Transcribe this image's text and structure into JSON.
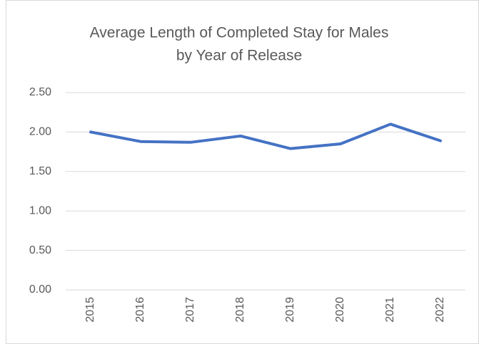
{
  "chart_data": {
    "type": "line",
    "title": [
      "Average Length of Completed Stay for Males",
      "by Year of Release"
    ],
    "categories": [
      "2015",
      "2016",
      "2017",
      "2018",
      "2019",
      "2020",
      "2021",
      "2022"
    ],
    "series": [
      {
        "name": "Average Length of Completed Stay",
        "color": "#4472c4",
        "values": [
          2.0,
          1.88,
          1.87,
          1.95,
          1.79,
          1.85,
          2.1,
          1.89
        ]
      }
    ],
    "ylim": [
      0,
      2.5
    ],
    "yticks": [
      {
        "value": 0,
        "label": "0.00"
      },
      {
        "value": 0.5,
        "label": "0.50"
      },
      {
        "value": 1,
        "label": "1.00"
      },
      {
        "value": 1.5,
        "label": "1.50"
      },
      {
        "value": 2,
        "label": "2.00"
      },
      {
        "value": 2.5,
        "label": "2.50"
      }
    ],
    "grid": true,
    "legend": false
  }
}
